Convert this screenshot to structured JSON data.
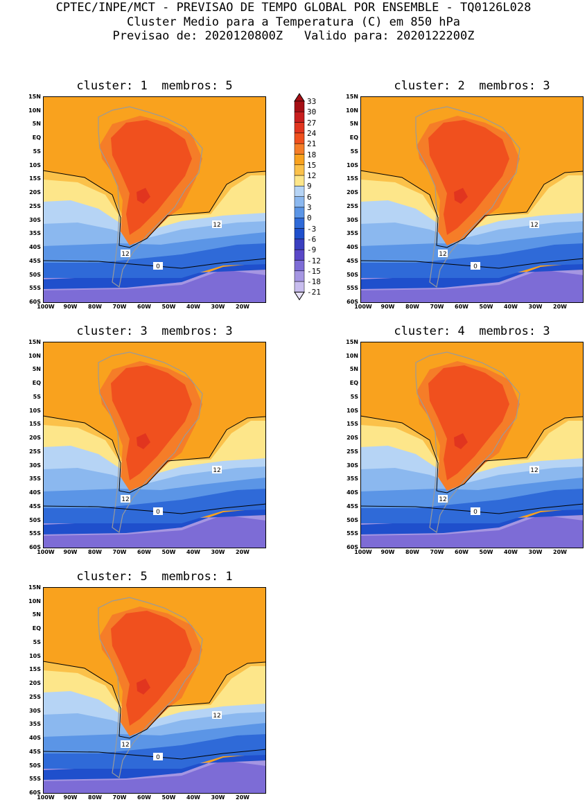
{
  "header": {
    "line1": "CPTEC/INPE/MCT - PREVISAO DE TEMPO GLOBAL POR ENSEMBLE - TQ0126L028",
    "line2": "Cluster Medio para a Temperatura (C) em 850 hPa",
    "line3": "Previsao de: 2020120800Z   Valido para: 2020122200Z"
  },
  "lat_labels": [
    "15N",
    "10N",
    "5N",
    "EQ",
    "5S",
    "10S",
    "15S",
    "20S",
    "25S",
    "30S",
    "35S",
    "40S",
    "45S",
    "50S",
    "55S",
    "60S"
  ],
  "lon_labels": [
    "100W",
    "90W",
    "80W",
    "70W",
    "60W",
    "50W",
    "40W",
    "30W",
    "20W"
  ],
  "colorbar": {
    "labels": [
      "33",
      "30",
      "27",
      "24",
      "21",
      "18",
      "15",
      "12",
      "9",
      "6",
      "3",
      "0",
      "-3",
      "-6",
      "-9",
      "-12",
      "-15",
      "-18",
      "-21"
    ],
    "colors": [
      "#a50f15",
      "#c81e1e",
      "#e1351f",
      "#f0501e",
      "#f57d28",
      "#f9a21e",
      "#fbc14a",
      "#fde68a",
      "#b6d4f5",
      "#8bb8ef",
      "#5b95e6",
      "#2f6ad8",
      "#1f4fcc",
      "#3a3fc0",
      "#5a48c8",
      "#7d6cd6",
      "#a596e2",
      "#c8bdee",
      "#e8e2f8"
    ]
  },
  "panels": [
    {
      "title": "cluster: 1  membros: 5",
      "c12": "12",
      "c0": "0"
    },
    {
      "title": "cluster: 2  membros: 3",
      "c12": "12",
      "c0": "0"
    },
    {
      "title": "cluster: 3  membros: 3",
      "c12": "12",
      "c0": "0"
    },
    {
      "title": "cluster: 4  membros: 3",
      "c12": "12",
      "c0": "0"
    },
    {
      "title": "cluster: 5  membros: 1",
      "c12": "12",
      "c0": "0"
    }
  ]
}
